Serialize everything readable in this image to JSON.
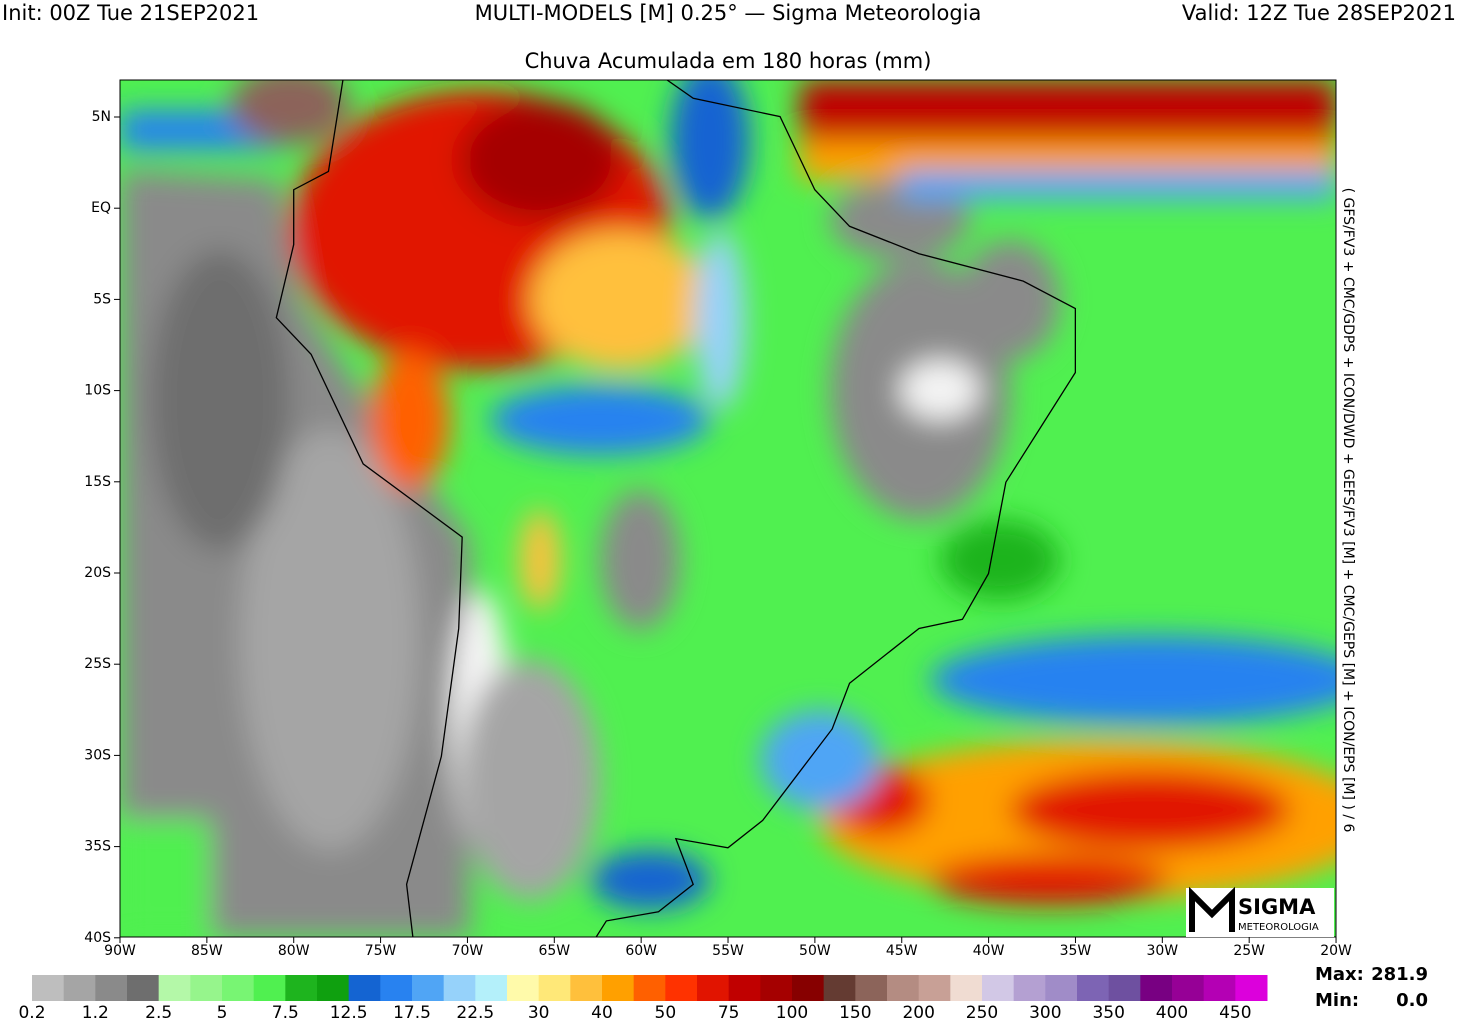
{
  "header": {
    "init": "Init: 00Z Tue 21SEP2021",
    "models": "MULTI-MODELS [M] 0.25° — Sigma Meteorologia",
    "valid": "Valid: 12Z Tue 28SEP2021",
    "title": "Chuva Acumulada em 180 horas (mm)"
  },
  "map": {
    "lat_labels": [
      "5N",
      "EQ",
      "5S",
      "10S",
      "15S",
      "20S",
      "25S",
      "30S",
      "35S",
      "40S"
    ],
    "lon_labels": [
      "90W",
      "85W",
      "80W",
      "75W",
      "70W",
      "65W",
      "60W",
      "55W",
      "50W",
      "45W",
      "40W",
      "35W",
      "30W",
      "25W",
      "20W"
    ],
    "side_note": "( GFS/FV3 + CMC/GDPS + ICON/DWD + GEFS/FV3 [M] + CMC/GEPS [M] + ICON/EPS [M] ) / 6",
    "logo": {
      "name": "SIGMA",
      "sub": "METEOROLOGIA"
    }
  },
  "colorbar": {
    "colors": [
      "#bebebe",
      "#a5a5a5",
      "#8a8a8a",
      "#6e6e6e",
      "#b4f8a8",
      "#96f58c",
      "#78f573",
      "#50f050",
      "#1eb41e",
      "#0fa00f",
      "#1464d2",
      "#2882f0",
      "#50a5f5",
      "#96d2fa",
      "#b4f0fa",
      "#fffaaa",
      "#ffe878",
      "#ffc03c",
      "#ffa000",
      "#ff6000",
      "#ff3200",
      "#e11400",
      "#c00000",
      "#a50000",
      "#870000",
      "#643b32",
      "#8c645a",
      "#b48c82",
      "#c8a096",
      "#f0dcd2",
      "#d2c8e6",
      "#b4a0d2",
      "#a08cc8",
      "#7d64b4",
      "#6e50a0",
      "#780082",
      "#960096",
      "#b400b4",
      "#dc00dc"
    ],
    "labels": [
      "0.2",
      "1.2",
      "2.5",
      "5",
      "7.5",
      "12.5",
      "17.5",
      "22.5",
      "30",
      "40",
      "50",
      "75",
      "100",
      "150",
      "200",
      "250",
      "300",
      "350",
      "400",
      "450"
    ]
  },
  "stats": {
    "max_label": "Max:",
    "max": "281.9",
    "min_label": "Min:",
    "min": "0.0"
  }
}
